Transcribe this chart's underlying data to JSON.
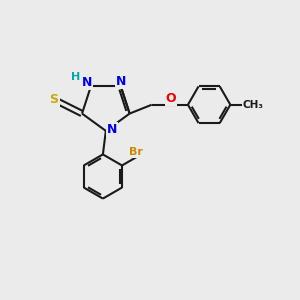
{
  "bg_color": "#ebebeb",
  "bond_color": "#1a1a1a",
  "bond_width": 1.5,
  "atom_colors": {
    "N": "#0000ee",
    "S": "#ccaa00",
    "Br": "#cc8800",
    "O": "#ee0000",
    "H": "#00aaaa",
    "C": "#1a1a1a"
  },
  "font_size_atom": 9,
  "font_size_H": 8,
  "font_size_small": 7.5
}
